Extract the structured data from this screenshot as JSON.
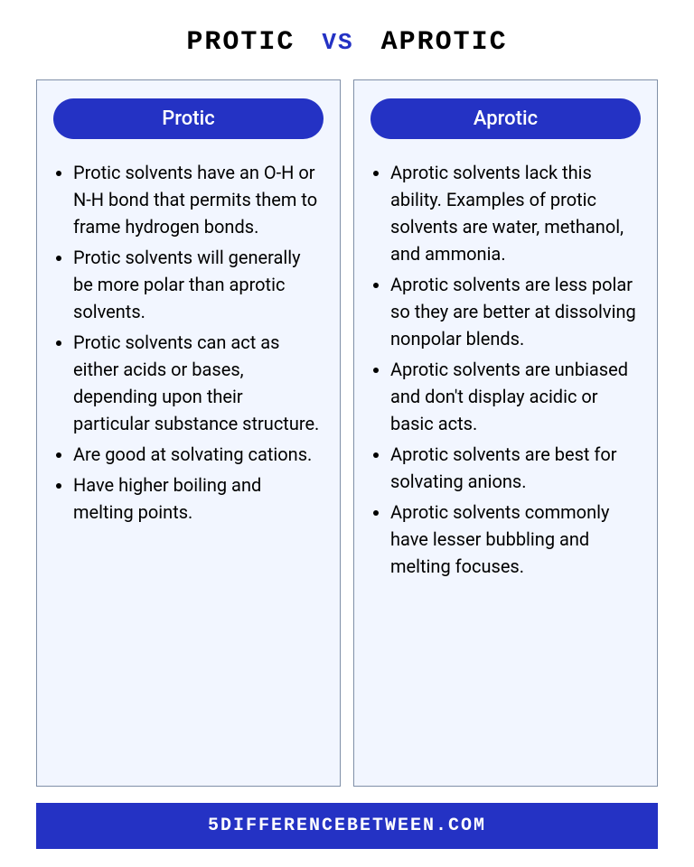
{
  "header": {
    "left": "PROTIC",
    "vs": "VS",
    "right": "APROTIC"
  },
  "colors": {
    "accent": "#2432c4",
    "column_bg": "#f2f6ff",
    "column_border": "#8090a8",
    "text": "#000000",
    "pill_text": "#ffffff"
  },
  "typography": {
    "header_fontsize": 30,
    "vs_fontsize": 26,
    "pill_fontsize": 22,
    "body_fontsize": 20,
    "footer_fontsize": 20
  },
  "left_column": {
    "title": "Protic",
    "items": [
      "Protic solvents have an O-H or N-H bond that permits them to frame hydrogen bonds.",
      "Protic solvents will generally be more polar than aprotic solvents.",
      "Protic solvents can act as either acids or bases, depending upon their particular substance structure.",
      "Are good at solvating cations.",
      "Have higher boiling and melting points."
    ]
  },
  "right_column": {
    "title": "Aprotic",
    "items": [
      "Aprotic solvents lack this ability. Examples of protic solvents are water, methanol, and ammonia.",
      "Aprotic solvents are less polar so they are better at dissolving nonpolar blends.",
      "Aprotic solvents are unbiased and don't display acidic or basic acts.",
      "Aprotic solvents are best for solvating anions.",
      "Aprotic solvents commonly have lesser bubbling and melting focuses."
    ]
  },
  "footer": "5DIFFERENCEBETWEEN.COM"
}
